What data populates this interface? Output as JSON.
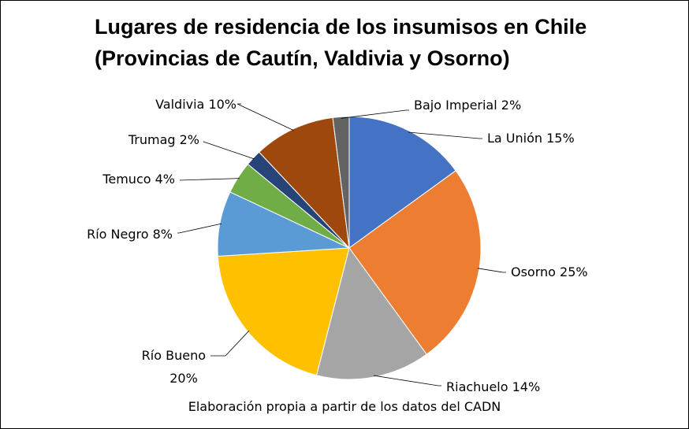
{
  "title_line1": "Lugares de residencia de los insumisos en Chile",
  "title_line2": "(Provincias de Cautín, Valdivia y Osorno)",
  "footnote": "Elaboración propia a partir de los datos del CADN",
  "chart_data": {
    "type": "pie",
    "title": "Lugares de residencia de los insumisos en Chile (Provincias de Cautín, Valdivia y Osorno)",
    "unit": "%",
    "slices": [
      {
        "label": "La Unión",
        "value": 15,
        "pct_text": "15%",
        "color": "#4472C4"
      },
      {
        "label": "Osorno",
        "value": 25,
        "pct_text": "25%",
        "color": "#ED7D31"
      },
      {
        "label": "Riachuelo",
        "value": 14,
        "pct_text": "14%",
        "color": "#A5A5A5"
      },
      {
        "label": "Río Bueno",
        "value": 20,
        "pct_text": "20%",
        "color": "#FFC000"
      },
      {
        "label": "Río Negro",
        "value": 8,
        "pct_text": "8%",
        "color": "#5B9BD5"
      },
      {
        "label": "Temuco",
        "value": 4,
        "pct_text": "4%",
        "color": "#70AD47"
      },
      {
        "label": "Trumag",
        "value": 2,
        "pct_text": "2%",
        "color": "#264478"
      },
      {
        "label": "Valdivia",
        "value": 10,
        "pct_text": "10%",
        "color": "#9E480E"
      },
      {
        "label": "Bajo Imperial",
        "value": 2,
        "pct_text": "2%",
        "color": "#636363"
      }
    ]
  }
}
